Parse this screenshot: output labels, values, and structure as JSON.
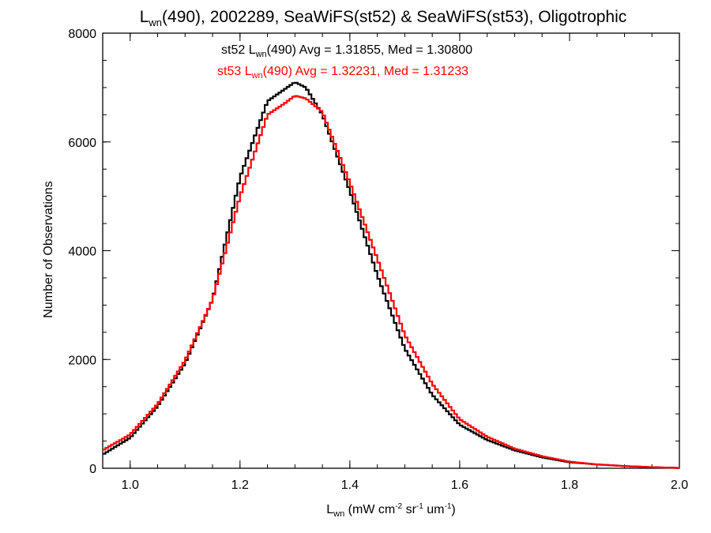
{
  "chart_data": {
    "type": "line",
    "title": {
      "main": "L",
      "main_sub": "wn",
      "rest": "(490), 2002289, SeaWiFS(st52) & SeaWiFS(st53), Oligotrophic"
    },
    "xlabel": {
      "main": "L",
      "main_sub": "wn",
      "p1": " (mW cm",
      "s1": "-2",
      "p2": " sr",
      "s2": "-1",
      "p3": " um",
      "s3": "-1",
      "p4": ")"
    },
    "ylabel": "Number of Observations",
    "xlim": [
      0.95,
      2.0
    ],
    "ylim": [
      0,
      8000
    ],
    "xticks": [
      {
        "value": 1.0,
        "label": "1.0"
      },
      {
        "value": 1.2,
        "label": "1.2"
      },
      {
        "value": 1.4,
        "label": "1.4"
      },
      {
        "value": 1.6,
        "label": "1.6"
      },
      {
        "value": 1.8,
        "label": "1.8"
      },
      {
        "value": 2.0,
        "label": "2.0"
      }
    ],
    "yticks": [
      {
        "value": 0,
        "label": "0"
      },
      {
        "value": 2000,
        "label": "2000"
      },
      {
        "value": 4000,
        "label": "4000"
      },
      {
        "value": 6000,
        "label": "6000"
      },
      {
        "value": 8000,
        "label": "8000"
      }
    ],
    "annotations": [
      {
        "color": "#000000",
        "pre": "st52 L",
        "sub": "wn",
        "post": "(490) Avg = 1.31855, Med = 1.30800"
      },
      {
        "color": "#ff0000",
        "pre": "st53 L",
        "sub": "wn",
        "post": "(490) Avg = 1.32231, Med = 1.31233"
      }
    ],
    "series": [
      {
        "name": "st52",
        "color": "#000000",
        "x": [
          0.95,
          1.0,
          1.05,
          1.1,
          1.15,
          1.2,
          1.25,
          1.28,
          1.3,
          1.32,
          1.35,
          1.4,
          1.45,
          1.5,
          1.55,
          1.6,
          1.65,
          1.7,
          1.75,
          1.8,
          1.85,
          1.9,
          1.95,
          2.0
        ],
        "y": [
          250,
          560,
          1140,
          1930,
          3100,
          5350,
          6750,
          6960,
          7100,
          7000,
          6500,
          5100,
          3550,
          2200,
          1350,
          800,
          520,
          330,
          200,
          110,
          70,
          40,
          20,
          5
        ]
      },
      {
        "name": "st53",
        "color": "#ff0000",
        "x": [
          0.95,
          1.0,
          1.05,
          1.1,
          1.15,
          1.2,
          1.25,
          1.28,
          1.3,
          1.32,
          1.35,
          1.4,
          1.45,
          1.5,
          1.55,
          1.6,
          1.65,
          1.7,
          1.75,
          1.8,
          1.85,
          1.9,
          1.95,
          2.0
        ],
        "y": [
          330,
          620,
          1180,
          1980,
          3100,
          5000,
          6500,
          6700,
          6850,
          6800,
          6550,
          5250,
          3850,
          2450,
          1550,
          900,
          580,
          360,
          220,
          120,
          70,
          40,
          20,
          5
        ]
      }
    ]
  }
}
